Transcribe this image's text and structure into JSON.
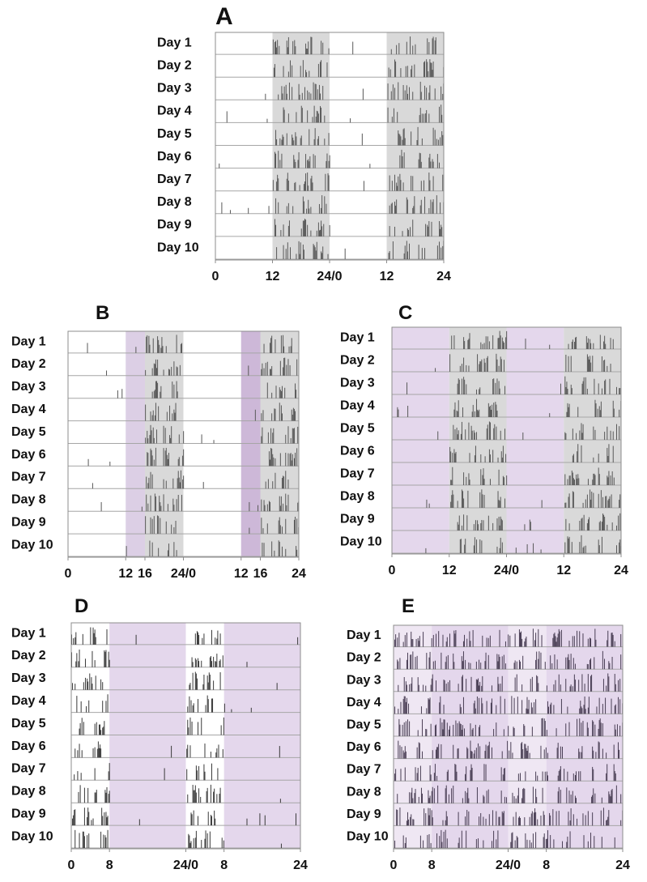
{
  "chart_data": [
    {
      "panel": "A",
      "type": "bar",
      "days": [
        "Day 1",
        "Day 2",
        "Day 3",
        "Day 4",
        "Day 5",
        "Day 6",
        "Day 7",
        "Day 8",
        "Day 9",
        "Day 10"
      ],
      "x_ticks": [
        "0",
        "12",
        "24/0",
        "12",
        "24"
      ],
      "x_tick_values": [
        0,
        12,
        24,
        36,
        48
      ],
      "xlim": [
        0,
        48
      ],
      "shading": [
        {
          "from": 12,
          "to": 24,
          "color": "#d9d9d9"
        },
        {
          "from": 36,
          "to": 48,
          "color": "#d9d9d9"
        }
      ],
      "activity_windows": [
        [
          12,
          24
        ],
        [
          36,
          48
        ]
      ],
      "bar_color": "#595959"
    },
    {
      "panel": "B",
      "type": "bar",
      "days": [
        "Day 1",
        "Day 2",
        "Day 3",
        "Day 4",
        "Day 5",
        "Day 6",
        "Day 7",
        "Day 8",
        "Day 9",
        "Day 10"
      ],
      "x_ticks": [
        "0",
        "12",
        "16",
        "24/0",
        "12",
        "16",
        "24"
      ],
      "x_tick_values": [
        0,
        12,
        16,
        24,
        36,
        40,
        48
      ],
      "xlim": [
        0,
        48
      ],
      "shading": [
        {
          "from": 12,
          "to": 16,
          "color": "#dccfe5"
        },
        {
          "from": 16,
          "to": 24,
          "color": "#d9d9d9"
        },
        {
          "from": 36,
          "to": 40,
          "color": "#cdb8d8"
        },
        {
          "from": 40,
          "to": 48,
          "color": "#d9d9d9"
        }
      ],
      "activity_windows": [
        [
          16,
          24
        ],
        [
          40,
          48
        ]
      ],
      "bar_color": "#595959"
    },
    {
      "panel": "C",
      "type": "bar",
      "days": [
        "Day 1",
        "Day 2",
        "Day 3",
        "Day 4",
        "Day 5",
        "Day 6",
        "Day 7",
        "Day 8",
        "Day 9",
        "Day 10"
      ],
      "x_ticks": [
        "0",
        "12",
        "24/0",
        "12",
        "24"
      ],
      "x_tick_values": [
        0,
        12,
        24,
        36,
        48
      ],
      "xlim": [
        0,
        48
      ],
      "shading": [
        {
          "from": 0,
          "to": 12,
          "color": "#e4d7ec"
        },
        {
          "from": 12,
          "to": 24,
          "color": "#d9d9d9"
        },
        {
          "from": 24,
          "to": 36,
          "color": "#e4d7ec"
        },
        {
          "from": 36,
          "to": 48,
          "color": "#d9d9d9"
        }
      ],
      "activity_windows": [
        [
          12,
          24
        ],
        [
          36,
          48
        ]
      ],
      "bar_color": "#595959"
    },
    {
      "panel": "D",
      "type": "bar",
      "days": [
        "Day 1",
        "Day 2",
        "Day 3",
        "Day 4",
        "Day 5",
        "Day 6",
        "Day 7",
        "Day 8",
        "Day 9",
        "Day 10"
      ],
      "x_ticks": [
        "0",
        "8",
        "24/0",
        "8",
        "24"
      ],
      "x_tick_values": [
        0,
        8,
        24,
        32,
        48
      ],
      "xlim": [
        0,
        48
      ],
      "shading": [
        {
          "from": 8,
          "to": 24,
          "color": "#e4d7ec"
        },
        {
          "from": 32,
          "to": 48,
          "color": "#e4d7ec"
        }
      ],
      "activity_windows": [
        [
          0,
          8
        ],
        [
          24,
          32
        ]
      ],
      "bar_color": "#3a3a3a"
    },
    {
      "panel": "E",
      "type": "bar",
      "days": [
        "Day 1",
        "Day 2",
        "Day 3",
        "Day 4",
        "Day 5",
        "Day 6",
        "Day 7",
        "Day 8",
        "Day 9",
        "Day 10"
      ],
      "x_ticks": [
        "0",
        "8",
        "24/0",
        "8",
        "24"
      ],
      "x_tick_values": [
        0,
        8,
        24,
        32,
        48
      ],
      "xlim": [
        0,
        48
      ],
      "shading": [
        {
          "from": 0,
          "to": 8,
          "color": "#efe7f3"
        },
        {
          "from": 8,
          "to": 24,
          "color": "#e4d7ec"
        },
        {
          "from": 24,
          "to": 32,
          "color": "#efe7f3"
        },
        {
          "from": 32,
          "to": 48,
          "color": "#e4d7ec"
        }
      ],
      "activity_windows": [
        [
          0,
          48
        ]
      ],
      "bar_color": "#4a3f55"
    }
  ],
  "colors": {
    "frame": "#8c8c8c",
    "row_line": "#a6a6a6",
    "text": "#111111"
  }
}
